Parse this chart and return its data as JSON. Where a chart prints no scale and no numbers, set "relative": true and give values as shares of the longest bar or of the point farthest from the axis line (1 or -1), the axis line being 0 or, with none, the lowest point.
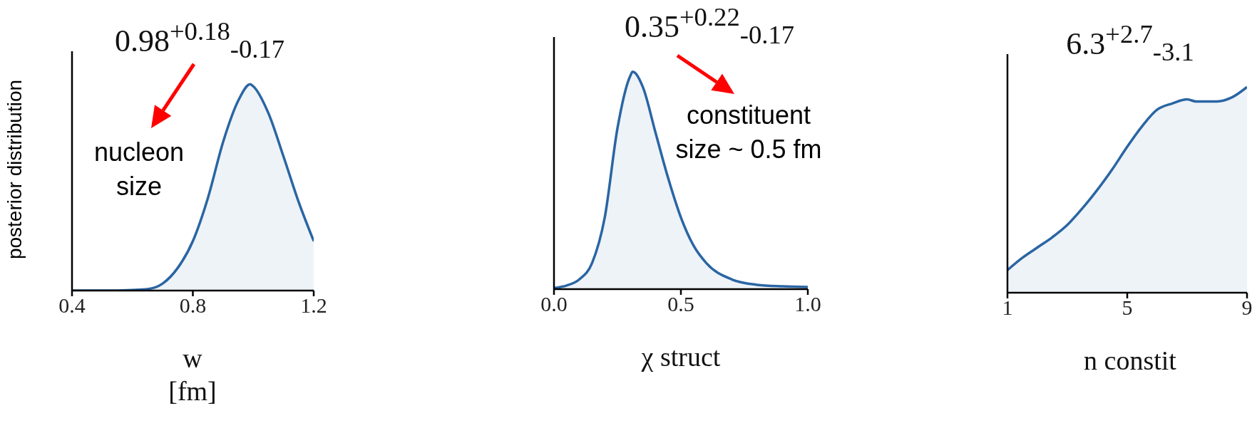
{
  "chart_data": [
    {
      "type": "area",
      "title": "0.98$^{+0.18}$$_{-0.17}$",
      "xlabel": "w\n[fm]",
      "ylabel": "posterior distribution",
      "relative": true,
      "xlim": [
        0.4,
        1.2
      ],
      "xticks": [
        0.4,
        0.8,
        1.2
      ],
      "annotations": [
        "nucleon\nsize"
      ],
      "x": [
        0.4,
        0.5,
        0.6,
        0.65,
        0.7,
        0.75,
        0.8,
        0.85,
        0.9,
        0.95,
        0.99,
        1.0,
        1.05,
        1.1,
        1.15,
        1.2
      ],
      "series": [
        {
          "color": "#2a65a3",
          "values": [
            0,
            0,
            0.003,
            0.007,
            0.034,
            0.11,
            0.24,
            0.45,
            0.72,
            0.92,
            1,
            0.99,
            0.86,
            0.65,
            0.43,
            0.24
          ]
        }
      ]
    },
    {
      "type": "area",
      "title": "0.35$^{+0.22}$$_{-0.17}$",
      "xlabel": "χ struct",
      "relative": true,
      "xlim": [
        0,
        1
      ],
      "xticks": [
        {
          "value": 0,
          "label": "0.0"
        },
        0.5,
        {
          "value": 1,
          "label": "1.0"
        }
      ],
      "annotations": [
        "constituent\nsize ~ 0.5 fm"
      ],
      "x": [
        0,
        0.05,
        0.1,
        0.15,
        0.2,
        0.25,
        0.3,
        0.31,
        0.35,
        0.4,
        0.45,
        0.5,
        0.55,
        0.6,
        0.7,
        0.8,
        0.9,
        1.0
      ],
      "series": [
        {
          "color": "#2a65a3",
          "values": [
            0.005,
            0.017,
            0.045,
            0.12,
            0.33,
            0.74,
            0.98,
            1,
            0.93,
            0.72,
            0.51,
            0.33,
            0.2,
            0.12,
            0.045,
            0.02,
            0.013,
            0.01
          ]
        }
      ]
    },
    {
      "type": "area",
      "title": "6.3$^{+2.7}$$_{-3.1}$",
      "xlabel": "n constit",
      "relative": true,
      "xlim": [
        1,
        9
      ],
      "xticks": [
        1,
        5,
        9
      ],
      "x": [
        1,
        1.5,
        2,
        2.5,
        3,
        3.5,
        4,
        4.5,
        5,
        5.5,
        6,
        6.5,
        7,
        7.3,
        7.7,
        8,
        8.5,
        9
      ],
      "series": [
        {
          "color": "#2a65a3",
          "values": [
            0.11,
            0.17,
            0.22,
            0.27,
            0.33,
            0.41,
            0.5,
            0.6,
            0.71,
            0.81,
            0.89,
            0.92,
            0.94,
            0.93,
            0.93,
            0.93,
            0.95,
            1
          ]
        }
      ]
    }
  ]
}
